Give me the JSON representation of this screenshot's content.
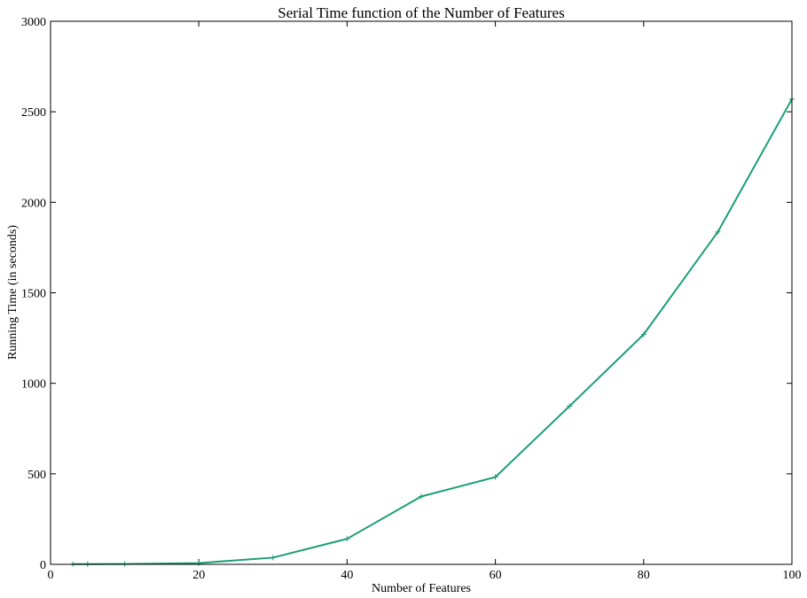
{
  "chart_data": {
    "type": "line",
    "title": "Serial Time function of the Number of Features",
    "xlabel": "Number of Features",
    "ylabel": "Running Time (in seconds)",
    "xlim": [
      0,
      100
    ],
    "ylim": [
      0,
      3000
    ],
    "x_ticks": [
      0,
      20,
      40,
      60,
      80,
      100
    ],
    "y_ticks": [
      0,
      500,
      1000,
      1500,
      2000,
      2500,
      3000
    ],
    "x_tick_labels": [
      "0",
      "20",
      "40",
      "60",
      "80",
      "100"
    ],
    "y_tick_labels": [
      "0",
      "500",
      "1000",
      "1500",
      "2000",
      "2500",
      "3000"
    ],
    "grid": false,
    "legend": "none",
    "series": [
      {
        "color": "#1b9e77",
        "marker": "+",
        "x": [
          3,
          5,
          10,
          20,
          30,
          40,
          50,
          60,
          70,
          80,
          90,
          100
        ],
        "y": [
          1,
          1,
          2,
          7,
          37,
          141,
          375,
          482,
          874,
          1270,
          1836,
          2570
        ]
      }
    ]
  }
}
